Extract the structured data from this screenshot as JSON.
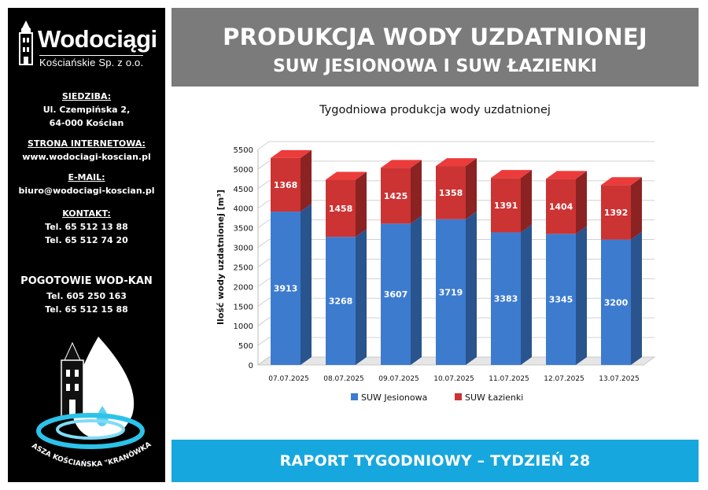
{
  "sidebar": {
    "logo_name": "Wodociągi",
    "logo_sub": "Kościańskie Sp. z o.o.",
    "siedziba_label": "SIEDZIBA:",
    "siedziba_line1": "Ul. Czempińska 2,",
    "siedziba_line2": "64-000 Kościan",
    "www_label": "STRONA INTERNETOWA:",
    "www_value": "www.wodociagi-koscian.pl",
    "email_label": "E-MAIL:",
    "email_value": "biuro@wodociagi-koscian.pl",
    "kontakt_label": "KONTAKT:",
    "kontakt_tel1": "Tel. 65 512 13 88",
    "kontakt_tel2": "Tel. 65 512 74 20",
    "pogotowie_label": "POGOTOWIE WOD-KAN",
    "pogotowie_tel1": "Tel. 605 250 163",
    "pogotowie_tel2": "Tel. 65 512 15 88",
    "kranowka_text": "NASZA KOŚCIAŃSKA \"KRANÓWKA\""
  },
  "header": {
    "title": "PRODUKCJA WODY UZDATNIONEJ",
    "subtitle": "SUW JESIONOWA I SUW ŁAZIENKI"
  },
  "footer": {
    "text": "RAPORT TYGODNIOWY – TYDZIEŃ 28"
  },
  "colors": {
    "jesionowa": "#3d7bcf",
    "lazienki": "#cc3333",
    "header_bg": "#7b7b7b",
    "footer_bg": "#17a7df",
    "sidebar_bg": "#000000"
  },
  "chart_data": {
    "type": "bar",
    "stacked": true,
    "title": "Tygodniowa produkcja wody uzdatnionej",
    "ylabel": "Ilość wody uzdatnionej [m³]",
    "xlabel": "",
    "ylim": [
      0,
      5500
    ],
    "yticks": [
      0,
      500,
      1000,
      1500,
      2000,
      2500,
      3000,
      3500,
      4000,
      4500,
      5000,
      5500
    ],
    "grid": true,
    "legend_position": "bottom",
    "categories": [
      "07.07.2025",
      "08.07.2025",
      "09.07.2025",
      "10.07.2025",
      "11.07.2025",
      "12.07.2025",
      "13.07.2025"
    ],
    "series": [
      {
        "name": "SUW Jesionowa",
        "values": [
          3913,
          3268,
          3607,
          3719,
          3383,
          3345,
          3200
        ]
      },
      {
        "name": "SUW Łazienki",
        "values": [
          1368,
          1458,
          1425,
          1358,
          1391,
          1404,
          1392
        ]
      }
    ]
  }
}
